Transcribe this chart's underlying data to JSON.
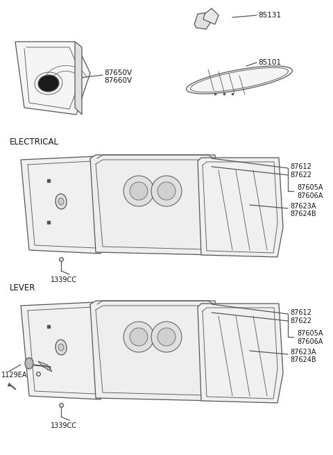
{
  "background_color": "#ffffff",
  "line_color": "#555555",
  "text_color": "#111111",
  "line_width": 0.9,
  "top_left_label1": "87650V",
  "top_left_label2": "87660V",
  "top_right_label1": "85131",
  "top_right_label2": "85101",
  "electrical_label": "ELECTRICAL",
  "lever_label": "LEVER",
  "elec_part_labels": [
    "87612",
    "87622",
    "87605A",
    "87606A",
    "87623A",
    "87624B",
    "1339CC"
  ],
  "lever_part_labels": [
    "87612",
    "87622",
    "87605A",
    "87606A",
    "87623A",
    "87624B",
    "1339CC",
    "1129EA"
  ]
}
